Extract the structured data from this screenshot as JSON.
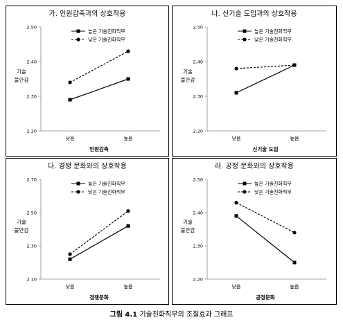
{
  "figure_caption": {
    "label": "그림 4.1",
    "text": "기술친화직무의 조절효과 그래프"
  },
  "chart_data": [
    {
      "type": "line",
      "title": "가. 인원감축과의 상호작용",
      "categories": [
        "낮음",
        "높음"
      ],
      "xlabel": "인원감축",
      "ylabel": [
        "기술",
        "불안감"
      ],
      "ylim": [
        2.2,
        2.5
      ],
      "yticks": [
        "2.20",
        "2.30",
        "2.40",
        "2.50"
      ],
      "grid": false,
      "legend": "top",
      "series": [
        {
          "name": "높은 기술친화직무",
          "style": "solid",
          "marker": "square",
          "values": [
            2.29,
            2.35
          ]
        },
        {
          "name": "낮은 기술친화직무",
          "style": "dashed",
          "marker": "circle",
          "values": [
            2.34,
            2.43
          ]
        }
      ]
    },
    {
      "type": "line",
      "title": "나. 신기술 도입과의 상호작용",
      "categories": [
        "낮음",
        "높음"
      ],
      "xlabel": "신기술 도입",
      "ylabel": [
        "기술",
        "불안감"
      ],
      "ylim": [
        2.2,
        2.5
      ],
      "yticks": [
        "2.20",
        "2.30",
        "2.40",
        "2.50"
      ],
      "grid": false,
      "legend": "top",
      "series": [
        {
          "name": "높은 기술친화직무",
          "style": "solid",
          "marker": "square",
          "values": [
            2.31,
            2.39
          ]
        },
        {
          "name": "낮은 기술친화직무",
          "style": "dashed",
          "marker": "circle",
          "values": [
            2.38,
            2.39
          ]
        }
      ]
    },
    {
      "type": "line",
      "title": "다. 경쟁 문화와의 상호작용",
      "categories": [
        "낮음",
        "높음"
      ],
      "xlabel": "경쟁문화",
      "ylabel": [
        "기술",
        "불안감"
      ],
      "ylim": [
        2.1,
        2.7
      ],
      "yticks": [
        "2.10",
        "2.30",
        "2.50",
        "2.70"
      ],
      "grid": false,
      "legend": "top",
      "series": [
        {
          "name": "높은 기술친화직무",
          "style": "solid",
          "marker": "square",
          "values": [
            2.22,
            2.42
          ]
        },
        {
          "name": "낮은 기술친화직무",
          "style": "dashed",
          "marker": "circle",
          "values": [
            2.25,
            2.51
          ]
        }
      ]
    },
    {
      "type": "line",
      "title": "라. 공정 문화와의 상호작용",
      "categories": [
        "낮음",
        "높음"
      ],
      "xlabel": "공정문화",
      "ylabel": [
        "기술",
        "불안감"
      ],
      "ylim": [
        2.2,
        2.5
      ],
      "yticks": [
        "2.20",
        "2.30",
        "2.40",
        "2.50"
      ],
      "grid": false,
      "legend": "top",
      "series": [
        {
          "name": "높은 기술친화직무",
          "style": "solid",
          "marker": "square",
          "values": [
            2.39,
            2.25
          ]
        },
        {
          "name": "낮은 기술친화직무",
          "style": "dashed",
          "marker": "circle",
          "values": [
            2.43,
            2.34
          ]
        }
      ]
    }
  ]
}
